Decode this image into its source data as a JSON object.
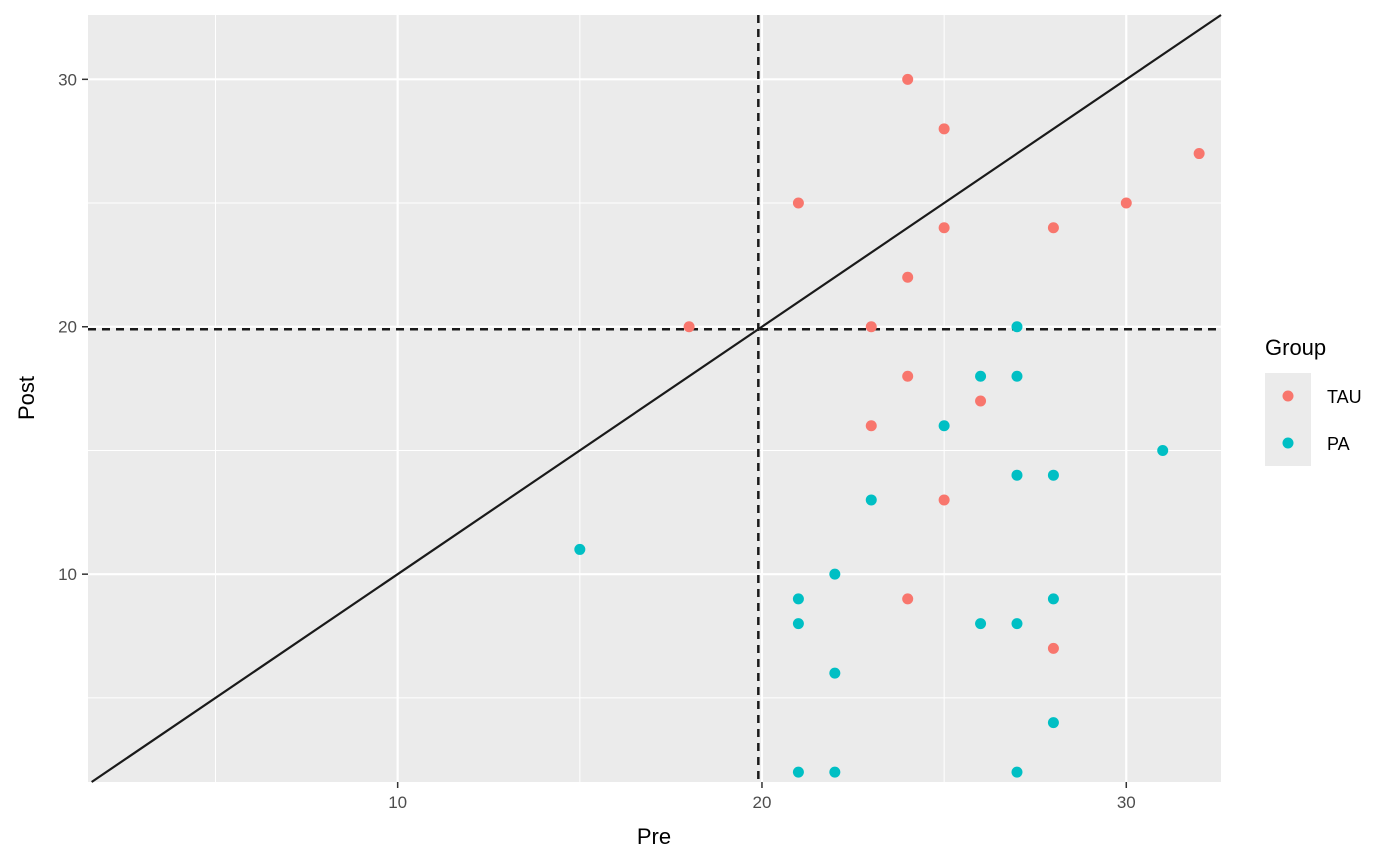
{
  "chart_data": {
    "type": "scatter",
    "xlabel": "Pre",
    "ylabel": "Post",
    "xlim": [
      1.5,
      32.6
    ],
    "ylim": [
      1.6,
      32.6
    ],
    "x_ticks": [
      10,
      20,
      30
    ],
    "y_ticks": [
      10,
      20,
      30
    ],
    "x_minor": [
      5,
      15,
      25
    ],
    "y_minor": [
      5,
      15,
      25
    ],
    "grid": true,
    "legend": {
      "title": "Group",
      "placement": "right"
    },
    "reference_lines": {
      "identity_line": {
        "slope": 1,
        "intercept": 0,
        "style": "solid"
      },
      "vline": {
        "x": 19.9,
        "style": "dashed"
      },
      "hline": {
        "y": 19.9,
        "style": "dashed"
      }
    },
    "colors": {
      "TAU": "#F8766D",
      "PA": "#00BFC4",
      "panel": "#EBEBEB",
      "grid": "#FFFFFF",
      "line": "#1a1a1a"
    },
    "series": [
      {
        "name": "TAU",
        "points": [
          [
            24,
            30
          ],
          [
            25,
            28
          ],
          [
            32,
            27
          ],
          [
            21,
            25
          ],
          [
            30,
            25
          ],
          [
            25,
            24
          ],
          [
            28,
            24
          ],
          [
            24,
            22
          ],
          [
            18,
            20
          ],
          [
            23,
            20
          ],
          [
            24,
            18
          ],
          [
            26,
            17
          ],
          [
            23,
            16
          ],
          [
            25,
            13
          ],
          [
            24,
            9
          ],
          [
            28,
            7
          ]
        ]
      },
      {
        "name": "PA",
        "points": [
          [
            27,
            20
          ],
          [
            26,
            18
          ],
          [
            27,
            18
          ],
          [
            25,
            16
          ],
          [
            31,
            15
          ],
          [
            27,
            14
          ],
          [
            28,
            14
          ],
          [
            23,
            13
          ],
          [
            15,
            11
          ],
          [
            22,
            10
          ],
          [
            21,
            9
          ],
          [
            28,
            9
          ],
          [
            21,
            8
          ],
          [
            26,
            8
          ],
          [
            27,
            8
          ],
          [
            22,
            6
          ],
          [
            28,
            4
          ],
          [
            21,
            2
          ],
          [
            22,
            2
          ],
          [
            27,
            2
          ]
        ]
      }
    ]
  }
}
